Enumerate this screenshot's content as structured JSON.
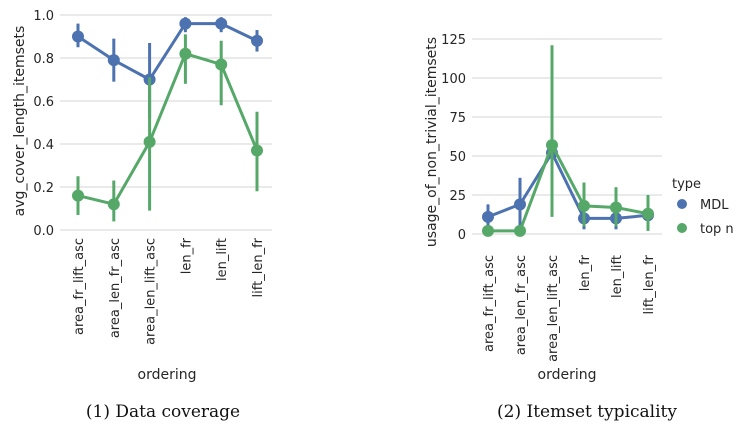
{
  "chart_data": [
    {
      "type": "line",
      "xlabel": "ordering",
      "ylabel": "avg_cover_length_itemsets",
      "categories": [
        "area_fr_lift_asc",
        "area_len_fr_asc",
        "area_len_lift_asc",
        "len_fr",
        "len_lift",
        "lift_len_fr"
      ],
      "ylim": [
        0,
        1.0
      ],
      "yticks": [
        "0.0",
        "0.2",
        "0.4",
        "0.6",
        "0.8",
        "1.0"
      ],
      "grid": true,
      "caption": "(1) Data coverage",
      "series": [
        {
          "name": "MDL",
          "color": "#4c72b0",
          "values": [
            0.9,
            0.79,
            0.7,
            0.96,
            0.96,
            0.88
          ],
          "err_low": [
            0.85,
            0.69,
            0.52,
            0.92,
            0.92,
            0.83
          ],
          "err_high": [
            0.96,
            0.89,
            0.87,
            0.99,
            0.99,
            0.93
          ]
        },
        {
          "name": "top n",
          "color": "#55a868",
          "values": [
            0.16,
            0.12,
            0.41,
            0.82,
            0.77,
            0.37
          ],
          "err_low": [
            0.07,
            0.04,
            0.09,
            0.68,
            0.58,
            0.18
          ],
          "err_high": [
            0.25,
            0.23,
            0.71,
            0.91,
            0.88,
            0.55
          ]
        }
      ]
    },
    {
      "type": "line",
      "xlabel": "ordering",
      "ylabel": "usage_of_non_trivial_itemsets",
      "categories": [
        "area_fr_lift_asc",
        "area_len_fr_asc",
        "area_len_lift_asc",
        "len_fr",
        "len_lift",
        "lift_len_fr"
      ],
      "ylim": [
        -5,
        127
      ],
      "yticks": [
        "0",
        "25",
        "50",
        "75",
        "100",
        "125"
      ],
      "grid": true,
      "legend_title": "type",
      "legend_position": "right",
      "caption": "(2) Itemset typicality",
      "series": [
        {
          "name": "MDL",
          "color": "#4c72b0",
          "values": [
            11,
            19,
            52,
            10,
            10,
            12
          ],
          "err_low": [
            5,
            5,
            49,
            3,
            3,
            8
          ],
          "err_high": [
            19,
            36,
            58,
            20,
            19,
            17
          ]
        },
        {
          "name": "top n",
          "color": "#55a868",
          "values": [
            2,
            2,
            57,
            18,
            17,
            13
          ],
          "err_low": [
            0,
            0,
            11,
            5,
            5,
            2
          ],
          "err_high": [
            4,
            4,
            121,
            33,
            30,
            25
          ]
        }
      ]
    }
  ]
}
